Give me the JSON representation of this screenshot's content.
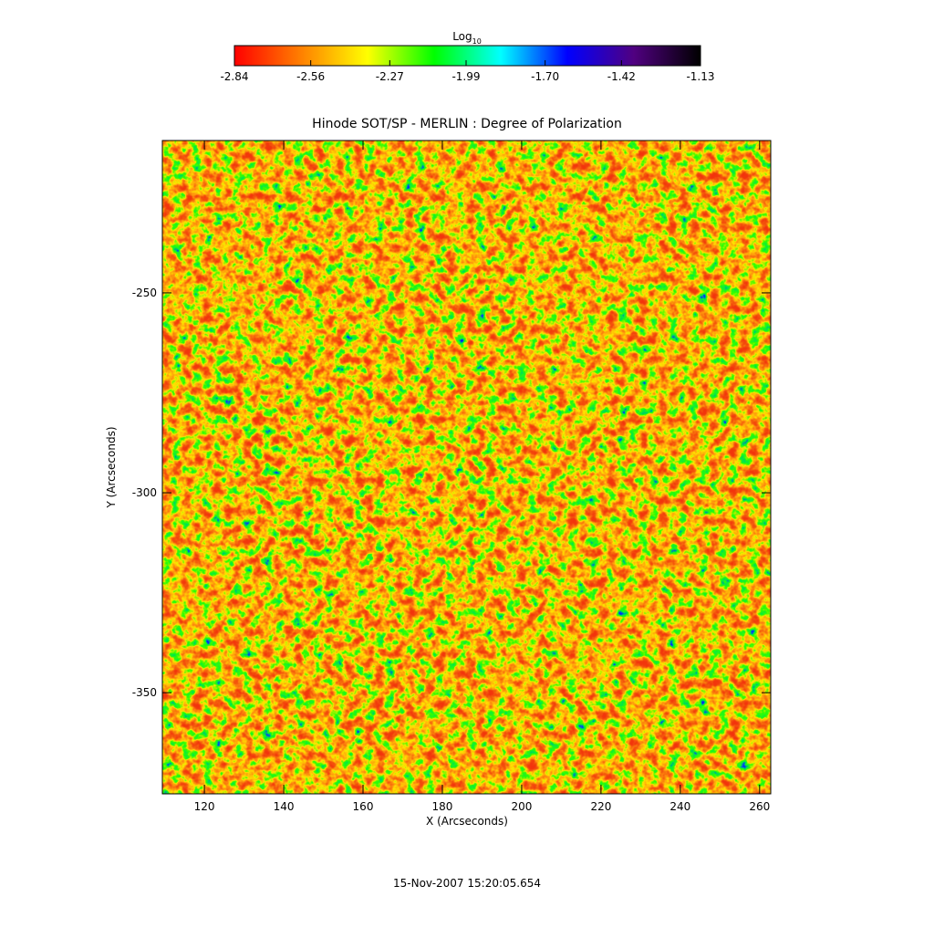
{
  "chart_data": {
    "type": "heatmap",
    "title": "Hinode SOT/SP - MERLIN : Degree of Polarization",
    "xlabel": "X (Arcseconds)",
    "ylabel": "Y (Arcseconds)",
    "xlim": [
      109.4,
      262.8
    ],
    "xticks": [
      120,
      140,
      160,
      180,
      200,
      220,
      240,
      260
    ],
    "ylim": [
      -375.3,
      -211.9
    ],
    "yticks": [
      -350,
      -300,
      -250
    ],
    "colorbar": {
      "label": "Log",
      "label_subscript": "10",
      "lim": [
        -2.84,
        -1.13
      ],
      "ticks": [
        -2.84,
        -2.56,
        -2.27,
        -1.99,
        {
          "value": -1.7,
          "label": "-1.70"
        },
        -1.42,
        -1.13
      ],
      "colormap": [
        "#ff0000",
        "#ff8000",
        "#ffff00",
        "#00ff00",
        "#00ffff",
        "#0000ff",
        "#500080",
        "#000000"
      ]
    },
    "footer": "15-Nov-2007 15:20:05.654"
  }
}
